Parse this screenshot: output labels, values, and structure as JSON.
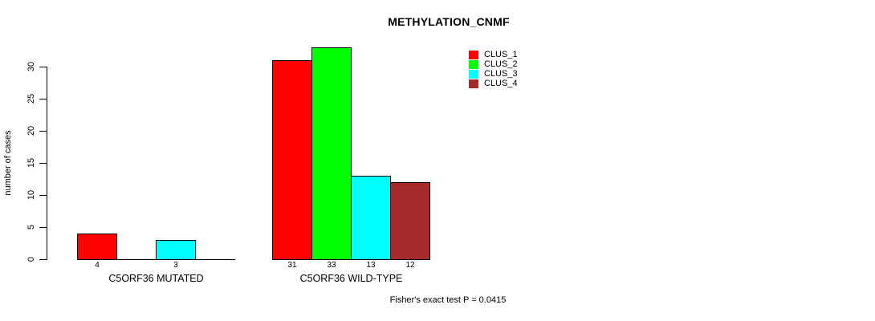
{
  "chart_data": {
    "type": "bar",
    "title": "METHYLATION_CNMF",
    "xlabel": "",
    "ylabel": "number of cases",
    "ylim": [
      0,
      33
    ],
    "yticks": [
      0,
      5,
      10,
      15,
      20,
      25,
      30
    ],
    "grid": false,
    "legend_position": "top-right",
    "categories": [
      "C5ORF36 MUTATED",
      "C5ORF36 WILD-TYPE"
    ],
    "series": [
      {
        "name": "CLUS_1",
        "color": "#ff0000",
        "values": [
          4,
          31
        ]
      },
      {
        "name": "CLUS_2",
        "color": "#00ff00",
        "values": [
          null,
          33
        ]
      },
      {
        "name": "CLUS_3",
        "color": "#00ffff",
        "values": [
          3,
          13
        ]
      },
      {
        "name": "CLUS_4",
        "color": "#a52a2a",
        "values": [
          null,
          12
        ]
      }
    ],
    "annotation": "Fisher's exact test P = 0.0415"
  }
}
